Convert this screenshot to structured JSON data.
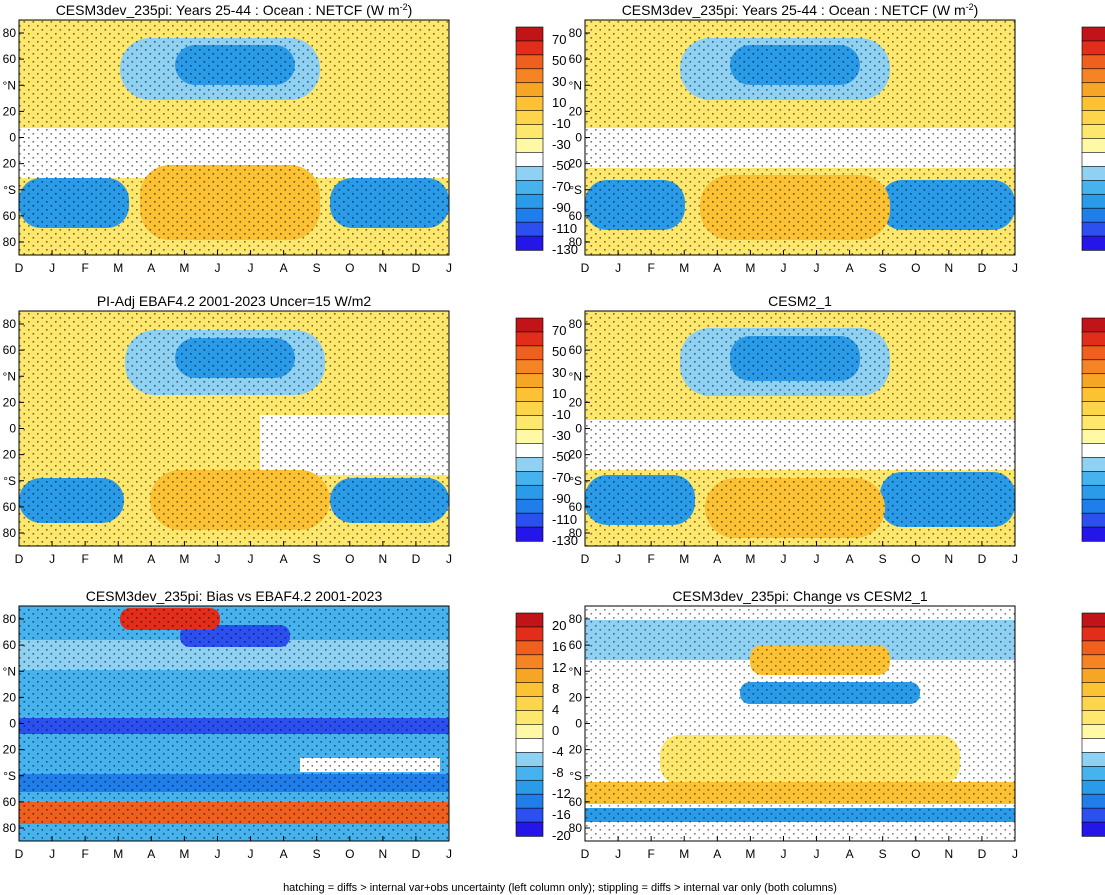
{
  "figure": {
    "footer": "hatching = diffs > internal var+obs uncertainty (left column only); stippling = diffs > internal var only (both columns)"
  },
  "chart_data": [
    {
      "type": "heatmap",
      "title": "CESM3dev_235pi: Years 25-44 : Ocean : NETCF (W m",
      "title_sup": "-2",
      "title_end": ")",
      "variable": "NETCF",
      "units": "W m-2",
      "x_ticks": [
        "D",
        "J",
        "F",
        "M",
        "A",
        "M",
        "J",
        "J",
        "A",
        "S",
        "O",
        "N",
        "D",
        "J"
      ],
      "y_ticks": [
        80,
        60,
        "°N",
        20,
        0,
        20,
        "°S",
        60,
        80
      ],
      "colorbar": {
        "scale": "full",
        "labels": [
          70,
          50,
          30,
          10,
          -10,
          -30,
          -50,
          -70,
          -90,
          -110,
          -130
        ]
      },
      "approx_features": [
        {
          "region": "NH mid-lat summer (May–Aug, 40–70°N)",
          "value": -80
        },
        {
          "region": "NH winter high-lat",
          "value": 40
        },
        {
          "region": "SH mid-lat summer (Nov–Feb, 40–70°S)",
          "value": -90
        },
        {
          "region": "SH winter (May–Aug, 40–70°S)",
          "value": 40
        },
        {
          "region": "Tropics",
          "value": -20
        }
      ],
      "hatching": true,
      "stippling": true
    },
    {
      "type": "heatmap",
      "title": "CESM3dev_235pi: Years 25-44 : Ocean : NETCF (W m",
      "title_sup": "-2",
      "title_end": ")",
      "variable": "NETCF",
      "units": "W m-2",
      "x_ticks": [
        "D",
        "J",
        "F",
        "M",
        "A",
        "M",
        "J",
        "J",
        "A",
        "S",
        "O",
        "N",
        "D",
        "J"
      ],
      "y_ticks": [
        80,
        60,
        "°N",
        20,
        0,
        20,
        "°S",
        60,
        80
      ],
      "colorbar": {
        "scale": "full",
        "labels": [
          70,
          50,
          30,
          10,
          -10,
          -30,
          -50,
          -70,
          -90,
          -110,
          -130
        ]
      },
      "approx_features": [
        {
          "region": "NH mid-lat summer",
          "value": -80
        },
        {
          "region": "SH mid-lat summer",
          "value": -90
        },
        {
          "region": "SH winter",
          "value": 40
        }
      ],
      "hatching": false,
      "stippling": true
    },
    {
      "type": "heatmap",
      "title": "PI-Adj EBAF4.2 2001-2023 Uncer=15 W/m2",
      "variable": "NETCF",
      "units": "W m-2",
      "x_ticks": [
        "D",
        "J",
        "F",
        "M",
        "A",
        "M",
        "J",
        "J",
        "A",
        "S",
        "O",
        "N",
        "D",
        "J"
      ],
      "y_ticks": [
        80,
        60,
        "°N",
        20,
        0,
        20,
        "°S",
        60,
        80
      ],
      "colorbar": {
        "scale": "full",
        "labels": [
          70,
          50,
          30,
          10,
          -10,
          -30,
          -50,
          -70,
          -90,
          -110,
          -130
        ]
      },
      "approx_features": [
        {
          "region": "NH mid-lat summer",
          "value": -70
        },
        {
          "region": "SH mid-lat summer",
          "value": -80
        },
        {
          "region": "Tropics",
          "value": -10
        }
      ],
      "hatching": true,
      "stippling": true
    },
    {
      "type": "heatmap",
      "title": "CESM2_1",
      "variable": "NETCF",
      "units": "W m-2",
      "x_ticks": [
        "D",
        "J",
        "F",
        "M",
        "A",
        "M",
        "J",
        "J",
        "A",
        "S",
        "O",
        "N",
        "D",
        "J"
      ],
      "y_ticks": [
        80,
        60,
        "°N",
        20,
        0,
        20,
        "°S",
        60,
        80
      ],
      "colorbar": {
        "scale": "full",
        "labels": [
          70,
          50,
          30,
          10,
          -10,
          -30,
          -50,
          -70,
          -90,
          -110,
          -130
        ]
      },
      "approx_features": [
        {
          "region": "NH mid-lat summer",
          "value": -80
        },
        {
          "region": "SH mid-lat summer",
          "value": -90
        }
      ],
      "hatching": false,
      "stippling": true
    },
    {
      "type": "heatmap",
      "title": "CESM3dev_235pi: Bias vs EBAF4.2 2001-2023",
      "variable": "NETCF difference",
      "units": "W m-2",
      "x_ticks": [
        "D",
        "J",
        "F",
        "M",
        "A",
        "M",
        "J",
        "J",
        "A",
        "S",
        "O",
        "N",
        "D",
        "J"
      ],
      "y_ticks": [
        80,
        60,
        "°N",
        20,
        0,
        20,
        "°S",
        60,
        80
      ],
      "colorbar": {
        "scale": "diff",
        "labels": [
          20,
          16,
          12,
          8,
          4,
          0,
          -4,
          -8,
          -12,
          -16,
          -20
        ]
      },
      "approx_features": [
        {
          "region": "Equator band",
          "value": -20
        },
        {
          "region": "~45°S band",
          "value": -18
        },
        {
          "region": "~65°S band",
          "value": 20
        },
        {
          "region": "NH high-lat spring",
          "value": 20
        },
        {
          "region": "Broad",
          "value": -8
        }
      ],
      "hatching": true,
      "stippling": true
    },
    {
      "type": "heatmap",
      "title": "CESM3dev_235pi: Change vs CESM2_1",
      "variable": "NETCF difference",
      "units": "W m-2",
      "x_ticks": [
        "D",
        "J",
        "F",
        "M",
        "A",
        "M",
        "J",
        "J",
        "A",
        "S",
        "O",
        "N",
        "D",
        "J"
      ],
      "y_ticks": [
        80,
        60,
        "°N",
        20,
        0,
        20,
        "°S",
        60,
        80
      ],
      "colorbar": {
        "scale": "diff",
        "labels": [
          20,
          16,
          12,
          8,
          4,
          0,
          -4,
          -8,
          -12,
          -16,
          -20
        ]
      },
      "approx_features": [
        {
          "region": "Tropics",
          "value": 6
        },
        {
          "region": "NH mid-lat",
          "value": -8
        },
        {
          "region": "~70°S band",
          "value": -14
        }
      ],
      "hatching": false,
      "stippling": true
    }
  ],
  "colormap": [
    "#2415e8",
    "#2c4ff0",
    "#1f7ee9",
    "#2a9be8",
    "#46b3ee",
    "#8fd1f3",
    "#ffffff",
    "#fff8a5",
    "#fde76c",
    "#fdd54a",
    "#fcc234",
    "#f7a524",
    "#f48424",
    "#ef5f1d",
    "#e12d1a",
    "#c11418"
  ]
}
